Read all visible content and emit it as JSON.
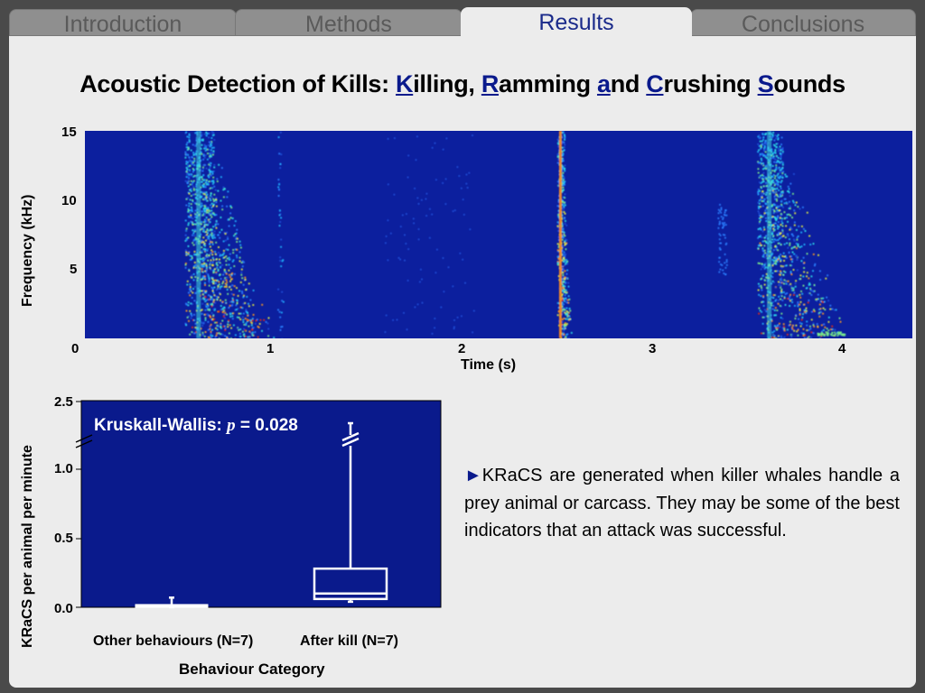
{
  "tabs": [
    {
      "label": "Introduction",
      "active": false
    },
    {
      "label": "Methods",
      "active": false
    },
    {
      "label": "Results",
      "active": true
    },
    {
      "label": "Conclusions",
      "active": false
    }
  ],
  "title": {
    "prefix": "Acoustic Detection of Kills: ",
    "parts": [
      {
        "hl": "K",
        "rest": "illing, "
      },
      {
        "hl": "R",
        "rest": "amming "
      },
      {
        "hl": "a",
        "rest": "nd "
      },
      {
        "hl": "C",
        "rest": "rushing "
      },
      {
        "hl": "S",
        "rest": "ounds"
      }
    ]
  },
  "colors": {
    "accent": "#0a1a8c",
    "plot_bg": "#0a1a8c",
    "spectrogram_bg": "#0c1f9e"
  },
  "spectrogram": {
    "ylabel": "Frequency (kHz)",
    "xlabel": "Time (s)",
    "yticks": [
      "15",
      "10",
      "5"
    ],
    "xticks": [
      "0",
      "1",
      "2",
      "3",
      "4"
    ],
    "ylim": [
      0,
      15
    ],
    "xlim": [
      0,
      4.35
    ],
    "colormap": "jet"
  },
  "boxplot": {
    "ylabel": "KRaCS per animal per minute",
    "xlabel": "Behaviour Category",
    "yticks": [
      "2.5",
      "1.0",
      "0.5",
      "0.0"
    ],
    "annotation_prefix": "Kruskall-Wallis: ",
    "annotation_p": "p",
    "annotation_suffix": " = 0.028",
    "categories": [
      "Other behaviours (N=7)",
      "After kill (N=7)"
    ]
  },
  "chart_data": [
    {
      "type": "heatmap",
      "title": "",
      "xlabel": "Time (s)",
      "ylabel": "Frequency (kHz)",
      "xlim": [
        0,
        4.35
      ],
      "ylim": [
        0,
        15
      ],
      "events": [
        {
          "time_s": 0.6,
          "freq_max_khz": 15,
          "description": "broadband transient"
        },
        {
          "time_s": 1.02,
          "freq_max_khz": 15,
          "description": "faint click"
        },
        {
          "time_s": 2.5,
          "freq_max_khz": 15,
          "description": "sharp broadband click"
        },
        {
          "time_s": 3.6,
          "freq_max_khz": 15,
          "description": "broadband transient"
        }
      ]
    },
    {
      "type": "box",
      "title": "",
      "xlabel": "Behaviour Category",
      "ylabel": "KRaCS per animal per minute",
      "categories": [
        "Other behaviours (N=7)",
        "After kill (N=7)"
      ],
      "axis_break": {
        "from": 1.2,
        "to": 2.3
      },
      "yticks": [
        0.0,
        0.5,
        1.0,
        2.5
      ],
      "boxes": [
        {
          "name": "Other behaviours (N=7)",
          "min": 0.0,
          "q1": 0.0,
          "median": 0.0,
          "q3": 0.02,
          "max": 0.07
        },
        {
          "name": "After kill (N=7)",
          "min": 0.04,
          "q1": 0.06,
          "median": 0.1,
          "q3": 0.28,
          "max": 2.35
        }
      ],
      "annotation": "Kruskall-Wallis: p = 0.028"
    }
  ],
  "note": {
    "bullet": "►",
    "text": "KRaCS are generated when killer whales handle a prey animal or carcass. They may be some of the best indicators that an attack was successful."
  }
}
